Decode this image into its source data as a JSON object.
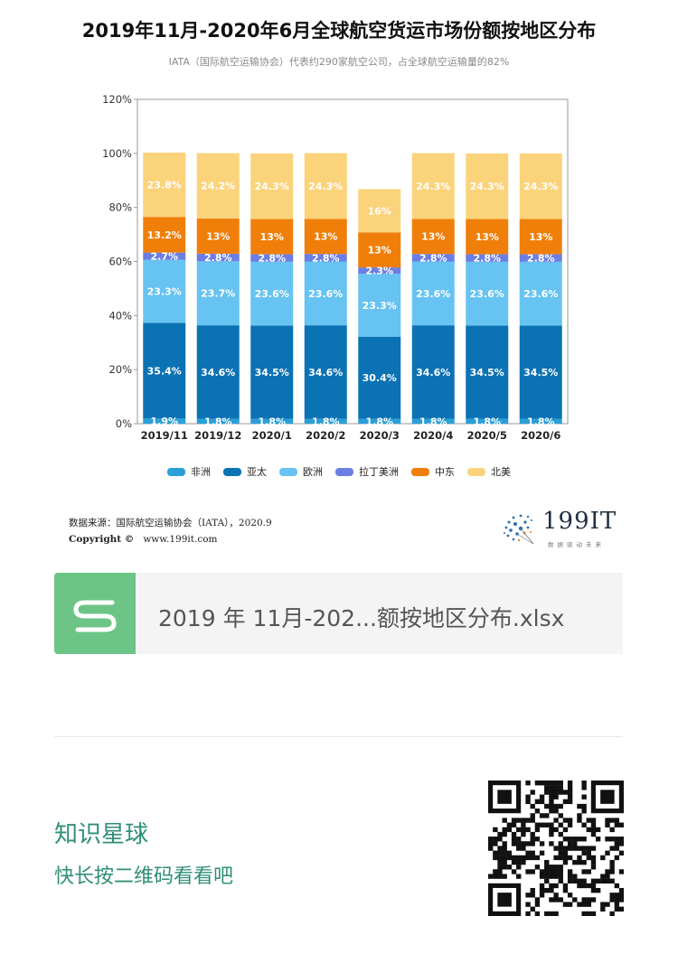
{
  "title": "2019年11月-2020年6月全球航空货运市场份额按地区分布",
  "subtitle": "IATA（国际航空运输协会）代表约290家航空公司，占全球航空运输量的82%",
  "chart_data": {
    "type": "bar",
    "stacked": true,
    "categories": [
      "2019/11",
      "2019/12",
      "2020/1",
      "2020/2",
      "2020/3",
      "2020/4",
      "2020/5",
      "2020/6"
    ],
    "ylim": [
      0,
      120
    ],
    "yticks": [
      0,
      20,
      40,
      60,
      80,
      100,
      120
    ],
    "ytick_labels": [
      "0%",
      "20%",
      "40%",
      "60%",
      "80%",
      "100%",
      "120%"
    ],
    "legend_position": "bottom",
    "series": [
      {
        "name": "非洲",
        "color": "#2a9fd8",
        "values": [
          1.9,
          1.8,
          1.8,
          1.8,
          1.8,
          1.8,
          1.8,
          1.8
        ],
        "labels": [
          "1.9%",
          "1.8%",
          "1.8%",
          "1.8%",
          "1.8%",
          "1.8%",
          "1.8%",
          "1.8%"
        ]
      },
      {
        "name": "亚太",
        "color": "#0b72b4",
        "values": [
          35.4,
          34.6,
          34.5,
          34.6,
          30.4,
          34.6,
          34.5,
          34.5
        ],
        "labels": [
          "35.4%",
          "34.6%",
          "34.5%",
          "34.6%",
          "30.4%",
          "34.6%",
          "34.5%",
          "34.5%"
        ]
      },
      {
        "name": "欧洲",
        "color": "#67c3f1",
        "values": [
          23.3,
          23.7,
          23.6,
          23.6,
          23.3,
          23.6,
          23.6,
          23.6
        ],
        "labels": [
          "23.3%",
          "23.7%",
          "23.6%",
          "23.6%",
          "23.3%",
          "23.6%",
          "23.6%",
          "23.6%"
        ]
      },
      {
        "name": "拉丁美洲",
        "color": "#6b7ee3",
        "values": [
          2.7,
          2.8,
          2.8,
          2.8,
          2.3,
          2.8,
          2.8,
          2.8
        ],
        "labels": [
          "2.7%",
          "2.8%",
          "2.8%",
          "2.8%",
          "2.3%",
          "2.8%",
          "2.8%",
          "2.8%"
        ]
      },
      {
        "name": "中东",
        "color": "#f07f0a",
        "values": [
          13.2,
          13,
          13,
          13,
          13,
          13,
          13,
          13
        ],
        "labels": [
          "13.2%",
          "13%",
          "13%",
          "13%",
          "13%",
          "13%",
          "13%",
          "13%"
        ]
      },
      {
        "name": "北美",
        "color": "#fbd37a",
        "values": [
          23.8,
          24.2,
          24.3,
          24.3,
          16,
          24.3,
          24.3,
          24.3
        ],
        "labels": [
          "23.8%",
          "24.2%",
          "24.3%",
          "24.3%",
          "16%",
          "24.3%",
          "24.3%",
          "24.3%"
        ]
      }
    ]
  },
  "source": {
    "label": "数据来源：国际航空运输协会（IATA），2020.9",
    "copyright_label": "Copyright ©",
    "url": "www.199it.com"
  },
  "logo": {
    "text": "199IT",
    "sub": "数据驱动未来"
  },
  "attachment": {
    "file_name": "2019 年 11月-202...额按地区分布.xlsx",
    "icon": "s-file-icon",
    "color": "#6cc586"
  },
  "knowledge_planet": {
    "title": "知识星球",
    "subtitle": "快长按二维码看看吧"
  },
  "qr": {
    "icon": "qr-code"
  }
}
